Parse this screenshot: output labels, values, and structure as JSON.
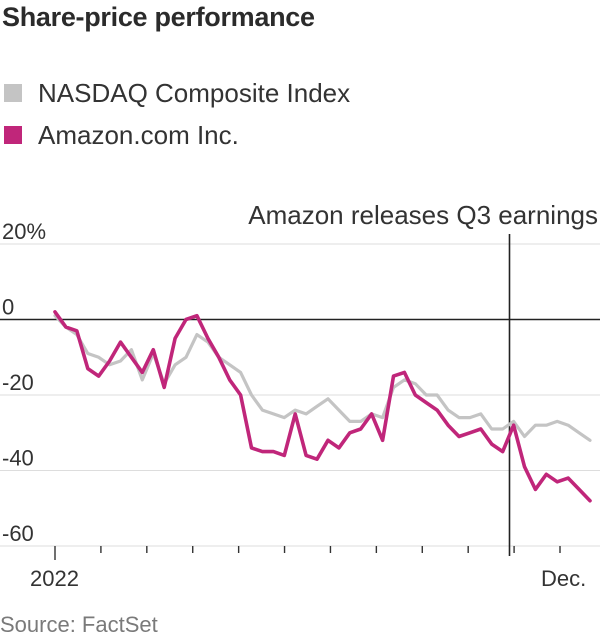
{
  "header": {
    "title": "Share-price performance"
  },
  "legend": {
    "items": [
      {
        "label": "NASDAQ Composite Index",
        "color": "#c4c4c4"
      },
      {
        "label": "Amazon.com Inc.",
        "color": "#c0267a"
      }
    ]
  },
  "annotation": {
    "label": "Amazon releases Q3 earnings",
    "date_fraction": 0.9
  },
  "footer": {
    "source": "Source: FactSet"
  },
  "chart_data": {
    "type": "line",
    "y_tick_labels": [
      "20%",
      "0",
      "-20",
      "-40",
      "-60"
    ],
    "y_ticks": [
      20,
      0,
      -20,
      -40,
      -60
    ],
    "ylim": [
      -60,
      20
    ],
    "x_tick_labels": [
      "2022",
      "Dec."
    ],
    "grid": true,
    "legend_position": "top-left",
    "x": [
      "Jan 2",
      "Jan 9",
      "Jan 16",
      "Jan 23",
      "Jan 30",
      "Feb 6",
      "Feb 13",
      "Feb 20",
      "Feb 27",
      "Mar 6",
      "Mar 13",
      "Mar 20",
      "Mar 27",
      "Apr 3",
      "Apr 10",
      "Apr 17",
      "Apr 24",
      "May 1",
      "May 8",
      "May 15",
      "May 22",
      "May 29",
      "Jun 5",
      "Jun 12",
      "Jun 19",
      "Jun 26",
      "Jul 3",
      "Jul 10",
      "Jul 17",
      "Jul 24",
      "Jul 31",
      "Aug 7",
      "Aug 14",
      "Aug 21",
      "Aug 28",
      "Sep 4",
      "Sep 11",
      "Sep 18",
      "Sep 25",
      "Oct 2",
      "Oct 9",
      "Oct 16",
      "Oct 23",
      "Oct 30",
      "Nov 6",
      "Nov 13",
      "Nov 20",
      "Nov 27",
      "Dec 4",
      "Dec 11"
    ],
    "series": [
      {
        "name": "NASDAQ Composite Index",
        "color": "#c4c4c4",
        "values": [
          1,
          -2,
          -4,
          -9,
          -10,
          -12,
          -11,
          -8,
          -16,
          -9,
          -17,
          -12,
          -10,
          -4,
          -6,
          -10,
          -12,
          -14,
          -20,
          -24,
          -25,
          -26,
          -24,
          -25,
          -23,
          -21,
          -24,
          -27,
          -27,
          -25,
          -26,
          -18,
          -16,
          -17,
          -20,
          -20,
          -24,
          -26,
          -26,
          -25,
          -29,
          -29,
          -27,
          -31,
          -28,
          -28,
          -27,
          -28,
          -30,
          -32
        ]
      },
      {
        "name": "Amazon.com Inc.",
        "color": "#c0267a",
        "values": [
          2,
          -2,
          -3,
          -13,
          -15,
          -11,
          -6,
          -10,
          -14,
          -8,
          -18,
          -5,
          0,
          1,
          -5,
          -10,
          -16,
          -20,
          -34,
          -35,
          -35,
          -36,
          -25,
          -36,
          -37,
          -32,
          -34,
          -30,
          -29,
          -25,
          -32,
          -15,
          -14,
          -20,
          -22,
          -24,
          -28,
          -31,
          -30,
          -29,
          -33,
          -35,
          -28,
          -39,
          -45,
          -41,
          -43,
          -42,
          -45,
          -48
        ]
      }
    ]
  }
}
